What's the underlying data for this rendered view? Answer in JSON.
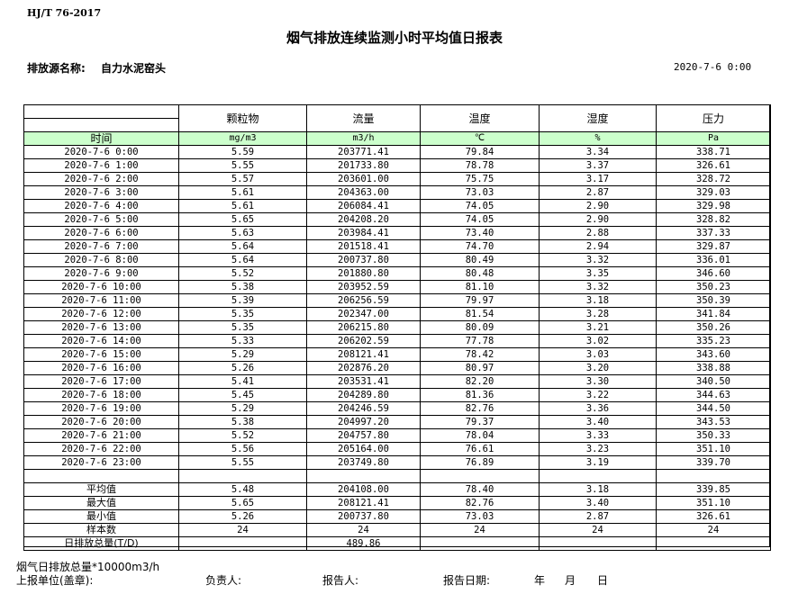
{
  "header": {
    "standard": "HJ/T  76-2017",
    "title": "烟气排放连续监测小时平均值日报表",
    "source_label": "排放源名称:",
    "source_value": "自力水泥窑头",
    "report_datetime": "2020-7-6 0:00"
  },
  "table": {
    "columns": [
      "颗粒物",
      "流量",
      "温度",
      "湿度",
      "压力"
    ],
    "time_header": "时间",
    "units": [
      "mg/m3",
      "m3/h",
      "℃",
      "%",
      "Pa"
    ],
    "rows": [
      [
        "2020-7-6 0:00",
        "5.59",
        "203771.41",
        "79.84",
        "3.34",
        "338.71"
      ],
      [
        "2020-7-6 1:00",
        "5.55",
        "201733.80",
        "78.78",
        "3.37",
        "326.61"
      ],
      [
        "2020-7-6 2:00",
        "5.57",
        "203601.00",
        "75.75",
        "3.17",
        "328.72"
      ],
      [
        "2020-7-6 3:00",
        "5.61",
        "204363.00",
        "73.03",
        "2.87",
        "329.03"
      ],
      [
        "2020-7-6 4:00",
        "5.61",
        "206084.41",
        "74.05",
        "2.90",
        "329.98"
      ],
      [
        "2020-7-6 5:00",
        "5.65",
        "204208.20",
        "74.05",
        "2.90",
        "328.82"
      ],
      [
        "2020-7-6 6:00",
        "5.63",
        "203984.41",
        "73.40",
        "2.88",
        "337.33"
      ],
      [
        "2020-7-6 7:00",
        "5.64",
        "201518.41",
        "74.70",
        "2.94",
        "329.87"
      ],
      [
        "2020-7-6 8:00",
        "5.64",
        "200737.80",
        "80.49",
        "3.32",
        "336.01"
      ],
      [
        "2020-7-6 9:00",
        "5.52",
        "201880.80",
        "80.48",
        "3.35",
        "346.60"
      ],
      [
        "2020-7-6 10:00",
        "5.38",
        "203952.59",
        "81.10",
        "3.32",
        "350.23"
      ],
      [
        "2020-7-6 11:00",
        "5.39",
        "206256.59",
        "79.97",
        "3.18",
        "350.39"
      ],
      [
        "2020-7-6 12:00",
        "5.35",
        "202347.00",
        "81.54",
        "3.28",
        "341.84"
      ],
      [
        "2020-7-6 13:00",
        "5.35",
        "206215.80",
        "80.09",
        "3.21",
        "350.26"
      ],
      [
        "2020-7-6 14:00",
        "5.33",
        "206202.59",
        "77.78",
        "3.02",
        "335.23"
      ],
      [
        "2020-7-6 15:00",
        "5.29",
        "208121.41",
        "78.42",
        "3.03",
        "343.60"
      ],
      [
        "2020-7-6 16:00",
        "5.26",
        "202876.20",
        "80.97",
        "3.20",
        "338.88"
      ],
      [
        "2020-7-6 17:00",
        "5.41",
        "203531.41",
        "82.20",
        "3.30",
        "340.50"
      ],
      [
        "2020-7-6 18:00",
        "5.45",
        "204289.80",
        "81.36",
        "3.22",
        "344.63"
      ],
      [
        "2020-7-6 19:00",
        "5.29",
        "204246.59",
        "82.76",
        "3.36",
        "344.50"
      ],
      [
        "2020-7-6 20:00",
        "5.38",
        "204997.20",
        "79.37",
        "3.40",
        "343.53"
      ],
      [
        "2020-7-6 21:00",
        "5.52",
        "204757.80",
        "78.04",
        "3.33",
        "350.33"
      ],
      [
        "2020-7-6 22:00",
        "5.56",
        "205164.00",
        "76.61",
        "3.23",
        "351.10"
      ],
      [
        "2020-7-6 23:00",
        "5.55",
        "203749.80",
        "76.89",
        "3.19",
        "339.70"
      ]
    ],
    "stats": [
      [
        "平均值",
        "5.48",
        "204108.00",
        "78.40",
        "3.18",
        "339.85"
      ],
      [
        "最大值",
        "5.65",
        "208121.41",
        "82.76",
        "3.40",
        "351.10"
      ],
      [
        "最小值",
        "5.26",
        "200737.80",
        "73.03",
        "2.87",
        "326.61"
      ],
      [
        "样本数",
        "24",
        "24",
        "24",
        "24",
        "24"
      ],
      [
        "日排放总量(T/D)",
        "",
        "489.86",
        "",
        "",
        ""
      ]
    ]
  },
  "footer": {
    "total_note": "烟气日排放总量*10000m3/h",
    "unit_label": "上报单位(盖章):",
    "responsible_label": "负责人:",
    "reporter_label": "报告人:",
    "date_label": "报告日期:",
    "year": "年",
    "month": "月",
    "day": "日"
  }
}
